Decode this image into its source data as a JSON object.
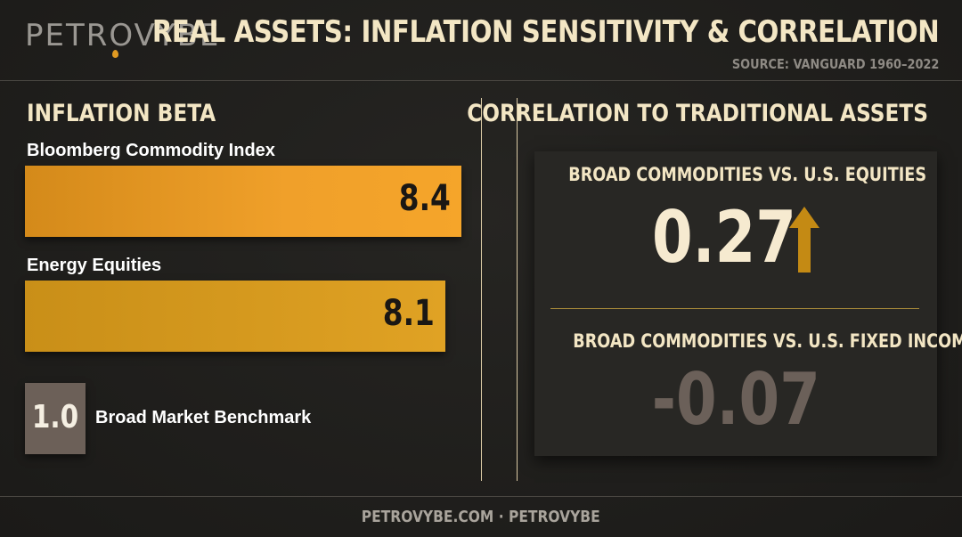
{
  "header": {
    "logo": "PETROVYBE",
    "title": "REAL ASSETS: INFLATION SENSITIVITY & CORRELATION",
    "source": "SOURCE: VANGUARD 1960–2022"
  },
  "chart_data": [
    {
      "type": "bar",
      "title": "INFLATION BETA",
      "categories": [
        "Bloomberg Commodity Index",
        "Energy Equities",
        "Broad Market Benchmark"
      ],
      "values": [
        8.4,
        8.1,
        1.0
      ],
      "value_labels": [
        "8.4",
        "8.1",
        "1.0"
      ],
      "orientation": "horizontal",
      "colors": [
        "#f09a25",
        "#d9a020",
        "#6c6058"
      ]
    },
    {
      "type": "table",
      "title": "CORRELATION TO TRADITIONAL ASSETS",
      "rows": [
        {
          "label": "BROAD COMMODITIES VS. U.S. EQUITIES",
          "value": 0.27,
          "display": "0.27",
          "trend": "up",
          "color": "#f6ead0"
        },
        {
          "label": "BROAD COMMODITIES VS. U.S. FIXED INCOME",
          "value": -0.07,
          "display": "-0.07",
          "color": "#6b6059"
        }
      ]
    }
  ],
  "footer": {
    "text": "PETROVYBE.COM · PETROVYBE"
  },
  "colors": {
    "accent": "#f09a25",
    "title": "#f3e6c4",
    "background": "#1e1d1b",
    "arrow": "#c48a14"
  }
}
